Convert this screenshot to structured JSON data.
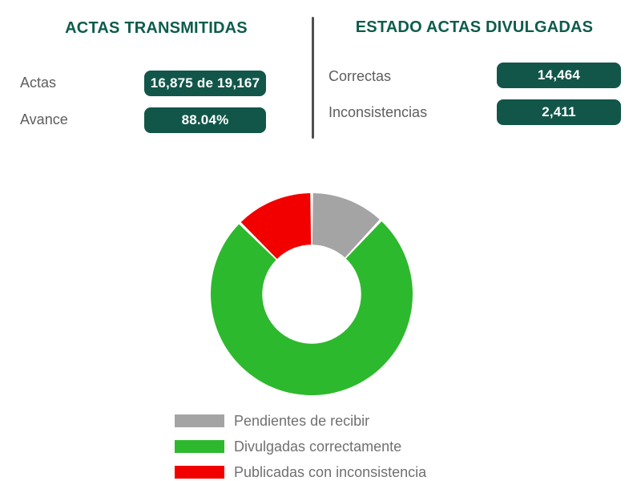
{
  "theme": {
    "title_color": "#0d5c4c",
    "badge_bg": "#12564a",
    "badge_text": "#ffffff",
    "label_color": "#5e5e5e",
    "legend_text_color": "#707070",
    "divider_color": "#4f4f4f",
    "background": "#ffffff"
  },
  "panels": {
    "transmitted": {
      "title": "ACTAS TRANSMITIDAS",
      "rows": [
        {
          "label": "Actas",
          "value": "16,875 de 19,167"
        },
        {
          "label": "Avance",
          "value": "88.04%"
        }
      ]
    },
    "divulged": {
      "title": "ESTADO ACTAS DIVULGADAS",
      "rows": [
        {
          "label": "Correctas",
          "value": "14,464"
        },
        {
          "label": "Inconsistencias",
          "value": "2,411"
        }
      ]
    }
  },
  "chart_data": {
    "type": "pie",
    "subtype": "donut",
    "total": 19167,
    "start_angle_deg": 0,
    "direction": "clockwise",
    "inner_radius_ratio": 0.49,
    "slice_gap_deg": 1.6,
    "legend_position": "bottom",
    "series": [
      {
        "id": "pendientes",
        "label": "Pendientes de recibir",
        "value": 2292,
        "percent": 11.96,
        "color": "#a4a4a4"
      },
      {
        "id": "divulgadas",
        "label": "Divulgadas correctamente",
        "value": 14464,
        "percent": 75.46,
        "color": "#2db92d"
      },
      {
        "id": "inconsistencias",
        "label": "Publicadas con inconsistencia",
        "value": 2411,
        "percent": 12.58,
        "color": "#f20000"
      }
    ]
  }
}
